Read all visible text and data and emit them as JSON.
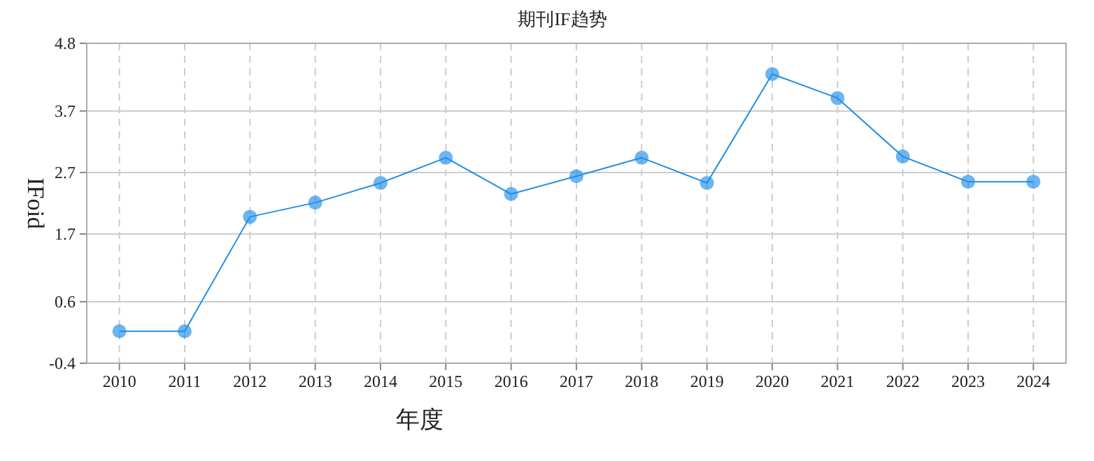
{
  "chart_data": {
    "type": "line",
    "title": "期刊IF趋势",
    "xlabel": "年度",
    "ylabel": "IFoid",
    "categories": [
      "2010",
      "2011",
      "2012",
      "2013",
      "2014",
      "2015",
      "2016",
      "2017",
      "2018",
      "2019",
      "2020",
      "2021",
      "2022",
      "2023",
      "2024"
    ],
    "series": [
      {
        "color": "#1e8ee8",
        "values": [
          0.12,
          0.12,
          1.98,
          2.21,
          2.53,
          2.94,
          2.35,
          2.64,
          2.94,
          2.53,
          4.3,
          3.91,
          2.96,
          2.55,
          2.55
        ]
      }
    ],
    "ylim": [
      -0.4,
      4.8
    ],
    "yticks": [
      -0.4,
      0.6,
      1.7,
      2.7,
      3.7,
      4.8
    ],
    "grid": true,
    "marker": "circle"
  }
}
